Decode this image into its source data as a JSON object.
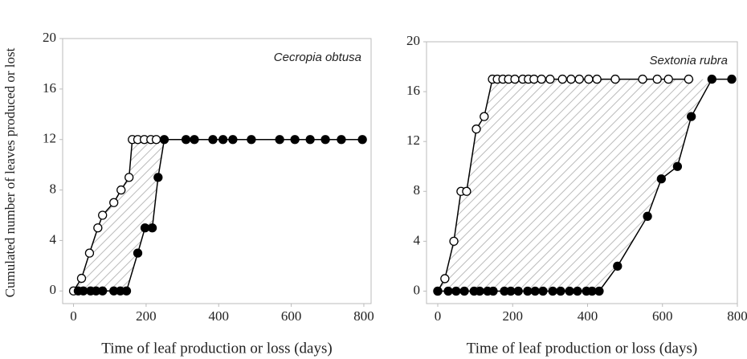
{
  "chart_data": [
    {
      "type": "line",
      "annotation": "Cecropia obtusa",
      "ylabel": "Cumulated number of leaves produced or lost",
      "xlabel": "Time of leaf production or loss (days)",
      "xlim": [
        -30,
        820
      ],
      "ylim": [
        -1,
        20
      ],
      "xticks": [
        0,
        200,
        400,
        600,
        800
      ],
      "yticks": [
        0,
        4,
        8,
        12,
        16,
        20
      ],
      "fill_between": true,
      "series": [
        {
          "marker": "open",
          "color": "#000000",
          "x": [
            0,
            22,
            44,
            67,
            80,
            111,
            131,
            153,
            162,
            177,
            195,
            213,
            228
          ],
          "values": [
            0,
            1,
            3,
            5,
            6,
            7,
            8,
            9,
            12,
            12,
            12,
            12,
            12
          ]
        },
        {
          "marker": "filled",
          "color": "#000000",
          "x": [
            13,
            27,
            47,
            62,
            80,
            111,
            129,
            146,
            177,
            197,
            217,
            233,
            250,
            310,
            333,
            384,
            412,
            439,
            490,
            568,
            610,
            652,
            694,
            738,
            796
          ],
          "values": [
            0,
            0,
            0,
            0,
            0,
            0,
            0,
            0,
            3,
            5,
            5,
            9,
            12,
            12,
            12,
            12,
            12,
            12,
            12,
            12,
            12,
            12,
            12,
            12,
            12
          ]
        }
      ]
    },
    {
      "type": "line",
      "annotation": "Sextonia rubra",
      "xlabel": "Time of leaf production or loss (days)",
      "xlim": [
        -30,
        800
      ],
      "ylim": [
        -1,
        20
      ],
      "xticks": [
        0,
        200,
        400,
        600,
        800
      ],
      "yticks": [
        0,
        4,
        8,
        12,
        16,
        20
      ],
      "fill_between": true,
      "series": [
        {
          "marker": "open",
          "color": "#000000",
          "x": [
            0,
            19,
            43,
            62,
            77,
            103,
            124,
            146,
            159,
            174,
            189,
            206,
            227,
            242,
            257,
            277,
            300,
            333,
            356,
            378,
            403,
            425,
            474,
            547,
            586,
            616,
            670
          ],
          "values": [
            0,
            1,
            4,
            8,
            8,
            13,
            14,
            17,
            17,
            17,
            17,
            17,
            17,
            17,
            17,
            17,
            17,
            17,
            17,
            17,
            17,
            17,
            17,
            17,
            17,
            17,
            17
          ]
        },
        {
          "marker": "filled",
          "color": "#000000",
          "x": [
            0,
            28,
            49,
            71,
            97,
            112,
            133,
            148,
            178,
            195,
            215,
            240,
            260,
            281,
            307,
            328,
            352,
            373,
            397,
            412,
            431,
            480,
            560,
            597,
            640,
            677,
            732,
            785
          ],
          "values": [
            0,
            0,
            0,
            0,
            0,
            0,
            0,
            0,
            0,
            0,
            0,
            0,
            0,
            0,
            0,
            0,
            0,
            0,
            0,
            0,
            0,
            2,
            6,
            9,
            10,
            14,
            17,
            17
          ]
        }
      ]
    }
  ]
}
